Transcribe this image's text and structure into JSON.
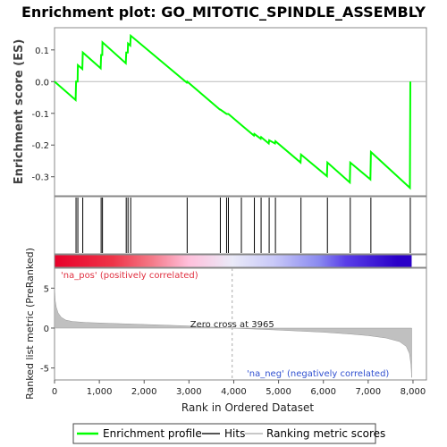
{
  "chart_data": {
    "type": "line",
    "title": "Enrichment plot: GO_MITOTIC_SPINDLE_ASSEMBLY",
    "es_panel": {
      "ylabel": "Enrichment score (ES)",
      "ylim": [
        -0.36,
        0.17
      ],
      "yticks": [
        0.1,
        0.0,
        -0.1,
        -0.2,
        -0.3
      ],
      "ytick_labels": [
        "0.1",
        "0.0",
        "-0.1",
        "-0.2",
        "-0.3"
      ]
    },
    "x": {
      "xlabel": "Rank in Ordered Dataset",
      "xlim": [
        0,
        8300
      ],
      "xticks": [
        0,
        1000,
        2000,
        3000,
        4000,
        5000,
        6000,
        7000,
        8000
      ],
      "xtick_labels": [
        "0",
        "1,000",
        "2,000",
        "3,000",
        "4,000",
        "5,000",
        "6,000",
        "7,000",
        "8,000"
      ]
    },
    "hits": [
      480,
      520,
      630,
      1040,
      1070,
      1600,
      1640,
      1700,
      2960,
      3700,
      3840,
      3880,
      4170,
      4460,
      4610,
      4790,
      4930,
      5500,
      6090,
      6600,
      7060,
      7940
    ],
    "series": [
      {
        "name": "Enrichment profile",
        "color": "#00ff00",
        "points": [
          [
            0,
            0.0
          ],
          [
            470,
            -0.058
          ],
          [
            480,
            0.0
          ],
          [
            515,
            0.0
          ],
          [
            520,
            0.052
          ],
          [
            620,
            0.04
          ],
          [
            630,
            0.092
          ],
          [
            1030,
            0.042
          ],
          [
            1040,
            0.084
          ],
          [
            1065,
            0.084
          ],
          [
            1070,
            0.124
          ],
          [
            1590,
            0.058
          ],
          [
            1600,
            0.092
          ],
          [
            1635,
            0.092
          ],
          [
            1640,
            0.12
          ],
          [
            1690,
            0.114
          ],
          [
            1700,
            0.145
          ],
          [
            2950,
            -0.003
          ],
          [
            2960,
            0.0
          ],
          [
            3690,
            -0.088
          ],
          [
            3700,
            -0.088
          ],
          [
            3840,
            -0.102
          ],
          [
            3880,
            -0.102
          ],
          [
            4170,
            -0.137
          ],
          [
            4450,
            -0.17
          ],
          [
            4460,
            -0.165
          ],
          [
            4600,
            -0.18
          ],
          [
            4610,
            -0.175
          ],
          [
            4780,
            -0.195
          ],
          [
            4790,
            -0.185
          ],
          [
            4920,
            -0.195
          ],
          [
            4930,
            -0.188
          ],
          [
            5490,
            -0.255
          ],
          [
            5500,
            -0.23
          ],
          [
            6080,
            -0.298
          ],
          [
            6090,
            -0.255
          ],
          [
            6590,
            -0.318
          ],
          [
            6600,
            -0.255
          ],
          [
            7050,
            -0.308
          ],
          [
            7060,
            -0.222
          ],
          [
            7930,
            -0.335
          ],
          [
            7940,
            0.0
          ]
        ]
      }
    ],
    "ranked_panel": {
      "ylabel": "Ranked list metric (PreRanked)",
      "ylim": [
        -6.5,
        7.5
      ],
      "yticks": [
        5,
        0,
        -5
      ],
      "ytick_labels": [
        "5",
        "0",
        "-5"
      ],
      "zero_cross_label": "Zero cross at 3965",
      "zero_cross": 3965,
      "pos_label": "'na_pos' (positively correlated)",
      "neg_label": "'na_neg' (negatively correlated)",
      "profile": [
        [
          0,
          5.2
        ],
        [
          15,
          3.4
        ],
        [
          40,
          2.6
        ],
        [
          80,
          1.9
        ],
        [
          150,
          1.35
        ],
        [
          250,
          1.0
        ],
        [
          400,
          0.82
        ],
        [
          700,
          0.7
        ],
        [
          1200,
          0.6
        ],
        [
          2000,
          0.45
        ],
        [
          3000,
          0.26
        ],
        [
          3965,
          0.0
        ],
        [
          5000,
          -0.25
        ],
        [
          6000,
          -0.52
        ],
        [
          6600,
          -0.75
        ],
        [
          7000,
          -0.95
        ],
        [
          7400,
          -1.25
        ],
        [
          7700,
          -1.7
        ],
        [
          7850,
          -2.3
        ],
        [
          7920,
          -3.2
        ],
        [
          7955,
          -4.6
        ],
        [
          7970,
          -6.2
        ]
      ]
    },
    "gradient_stops": [
      [
        0,
        "#e8002a"
      ],
      [
        1300,
        "#ee3448"
      ],
      [
        2150,
        "#f47886"
      ],
      [
        3000,
        "#ffc0dc"
      ],
      [
        3965,
        "#eaeaf8"
      ],
      [
        4900,
        "#c8c8f8"
      ],
      [
        5900,
        "#8a8af0"
      ],
      [
        6500,
        "#5a3ee8"
      ],
      [
        7650,
        "#2a00c8"
      ]
    ],
    "legend": [
      "Enrichment profile",
      "Hits",
      "Ranking metric scores"
    ]
  }
}
